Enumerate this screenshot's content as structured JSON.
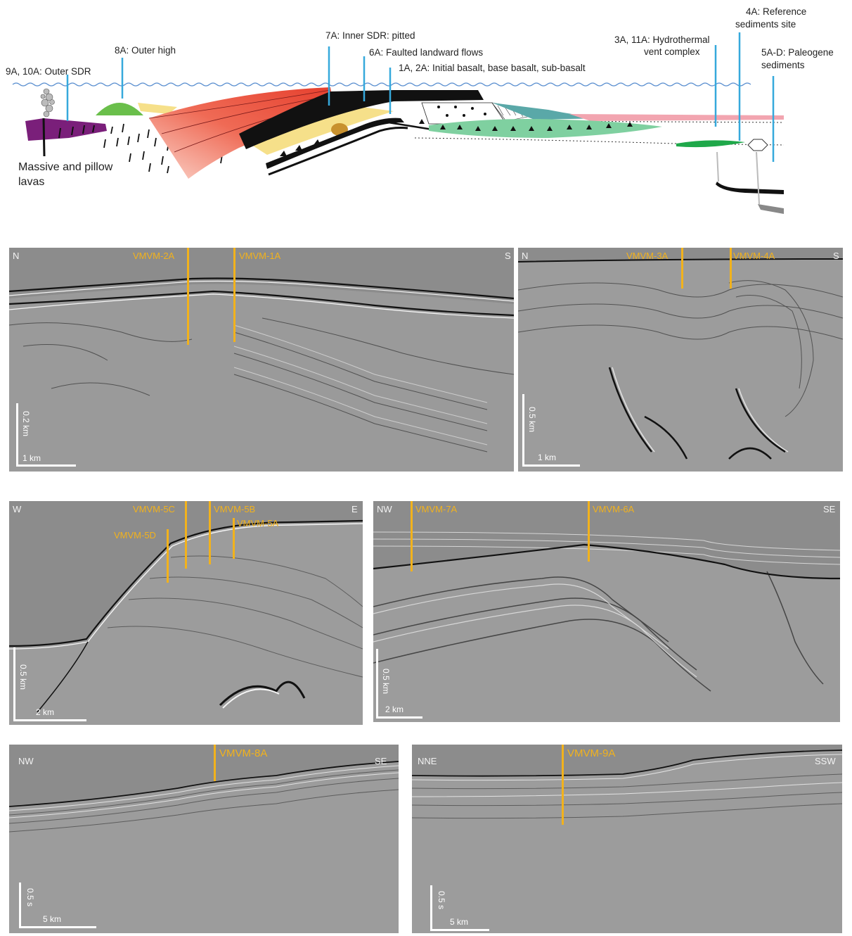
{
  "colors": {
    "well_line": "#f2b21c",
    "site_line": "#36a9dc",
    "outer_sdr": "#7a1f7a",
    "outer_high": "#6abf4b",
    "inner_sdr": "#e8503a",
    "basalt": "#111111",
    "sediment_yellow": "#f6e08a",
    "vent_complex": "#1fa84a",
    "teal_sediment": "#5aa8a8",
    "seismic_background": "#8c8c8c"
  },
  "schematic": {
    "labels": {
      "outer_sdr": "9A, 10A: Outer SDR",
      "outer_high": "8A: Outer high",
      "inner_sdr": "7A: Inner SDR: pitted",
      "faulted_flows": "6A: Faulted landward flows",
      "initial_basalt": "1A, 2A: Initial basalt, base basalt, sub-basalt",
      "vent_line1": "3A, 11A: Hydrothermal",
      "vent_line2": "vent complex",
      "ref_line1": "4A: Reference",
      "ref_line2": "sediments site",
      "paleo_line1": "5A-D: Paleogene",
      "paleo_line2": "sediments",
      "lavas_line1": "Massive and pillow",
      "lavas_line2": "lavas"
    }
  },
  "panels": [
    {
      "id": "p1",
      "left_dir": "N",
      "right_dir": "S",
      "wells": [
        "VMVM-2A",
        "VMVM-1A"
      ],
      "vscale": "0.2 km",
      "hscale": "1 km"
    },
    {
      "id": "p2",
      "left_dir": "N",
      "right_dir": "S",
      "wells": [
        "VMVM-3A",
        "VMVM-4A"
      ],
      "vscale": "0.5 km",
      "hscale": "1 km"
    },
    {
      "id": "p3",
      "left_dir": "W",
      "right_dir": "E",
      "wells": [
        "VMVM-5C",
        "VMVM-5B",
        "VMVM-5D",
        "VMVM-5A"
      ],
      "vscale": "0.5 km",
      "hscale": "2 km"
    },
    {
      "id": "p4",
      "left_dir": "NW",
      "right_dir": "SE",
      "wells": [
        "VMVM-7A",
        "VMVM-6A"
      ],
      "vscale": "0.5 km",
      "hscale": "2 km"
    },
    {
      "id": "p5",
      "left_dir": "NW",
      "right_dir": "SE",
      "wells": [
        "VMVM-8A"
      ],
      "vscale": "0.5 s",
      "hscale": "5 km"
    },
    {
      "id": "p6",
      "left_dir": "NNE",
      "right_dir": "SSW",
      "wells": [
        "VMVM-9A"
      ],
      "vscale": "0.5 s",
      "hscale": "5 km"
    }
  ]
}
